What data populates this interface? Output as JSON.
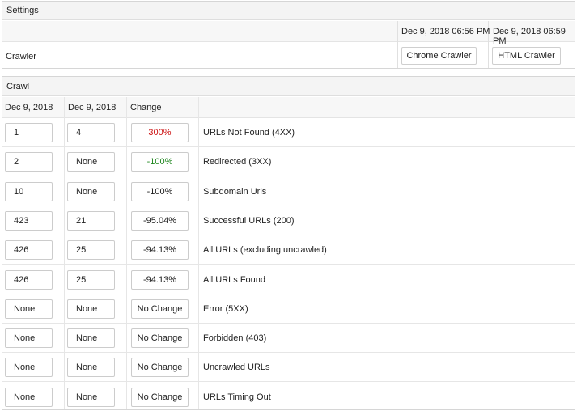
{
  "settings": {
    "title": "Settings",
    "date_1": "Dec 9, 2018 06:56 PM",
    "date_2": "Dec 9, 2018 06:59 PM",
    "crawler_label": "Crawler",
    "crawler_1": "Chrome Crawler",
    "crawler_2": "HTML Crawler"
  },
  "crawl": {
    "title": "Crawl",
    "columns": [
      "Dec 9, 2018",
      "Dec 9, 2018",
      "Change",
      ""
    ],
    "rows": [
      {
        "v1": "1",
        "v2": "4",
        "change": "300%",
        "change_color": "#cc1111",
        "label": "URLs Not Found (4XX)"
      },
      {
        "v1": "2",
        "v2": "None",
        "change": "-100%",
        "change_color": "#228822",
        "label": "Redirected (3XX)"
      },
      {
        "v1": "10",
        "v2": "None",
        "change": "-100%",
        "change_color": "",
        "label": "Subdomain Urls"
      },
      {
        "v1": "423",
        "v2": "21",
        "change": "-95.04%",
        "change_color": "",
        "label": "Successful URLs (200)"
      },
      {
        "v1": "426",
        "v2": "25",
        "change": "-94.13%",
        "change_color": "",
        "label": "All URLs (excluding uncrawled)"
      },
      {
        "v1": "426",
        "v2": "25",
        "change": "-94.13%",
        "change_color": "",
        "label": "All URLs Found"
      },
      {
        "v1": "None",
        "v2": "None",
        "change": "No Change",
        "change_color": "",
        "label": "Error (5XX)"
      },
      {
        "v1": "None",
        "v2": "None",
        "change": "No Change",
        "change_color": "",
        "label": "Forbidden (403)"
      },
      {
        "v1": "None",
        "v2": "None",
        "change": "No Change",
        "change_color": "",
        "label": "Uncrawled URLs"
      },
      {
        "v1": "None",
        "v2": "None",
        "change": "No Change",
        "change_color": "",
        "label": "URLs Timing Out"
      }
    ]
  }
}
